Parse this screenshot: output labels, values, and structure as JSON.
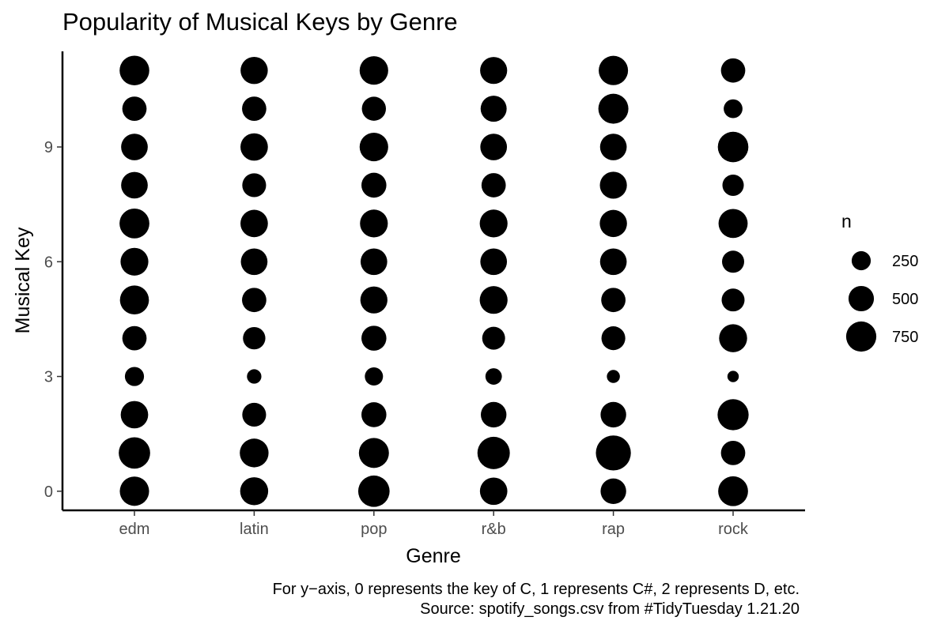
{
  "chart_data": {
    "type": "scatter",
    "title": "Popularity of Musical Keys by Genre",
    "xlabel": "Genre",
    "ylabel": "Musical Key",
    "categories": [
      "edm",
      "latin",
      "pop",
      "r&b",
      "rap",
      "rock"
    ],
    "y_ticks": [
      0,
      3,
      6,
      9
    ],
    "ylim": [
      -0.5,
      11.5
    ],
    "grid": false,
    "size_legend": {
      "title": "n",
      "position": "right",
      "entries": [
        250,
        500,
        750
      ]
    },
    "marker_color": "#000000",
    "points": [
      {
        "genre": "edm",
        "key": 0,
        "n": 700
      },
      {
        "genre": "edm",
        "key": 1,
        "n": 820
      },
      {
        "genre": "edm",
        "key": 2,
        "n": 600
      },
      {
        "genre": "edm",
        "key": 3,
        "n": 250
      },
      {
        "genre": "edm",
        "key": 4,
        "n": 450
      },
      {
        "genre": "edm",
        "key": 5,
        "n": 680
      },
      {
        "genre": "edm",
        "key": 6,
        "n": 620
      },
      {
        "genre": "edm",
        "key": 7,
        "n": 730
      },
      {
        "genre": "edm",
        "key": 8,
        "n": 560
      },
      {
        "genre": "edm",
        "key": 9,
        "n": 560
      },
      {
        "genre": "edm",
        "key": 10,
        "n": 450
      },
      {
        "genre": "edm",
        "key": 11,
        "n": 720
      },
      {
        "genre": "latin",
        "key": 0,
        "n": 630
      },
      {
        "genre": "latin",
        "key": 1,
        "n": 670
      },
      {
        "genre": "latin",
        "key": 2,
        "n": 430
      },
      {
        "genre": "latin",
        "key": 3,
        "n": 120
      },
      {
        "genre": "latin",
        "key": 4,
        "n": 370
      },
      {
        "genre": "latin",
        "key": 5,
        "n": 450
      },
      {
        "genre": "latin",
        "key": 6,
        "n": 560
      },
      {
        "genre": "latin",
        "key": 7,
        "n": 600
      },
      {
        "genre": "latin",
        "key": 8,
        "n": 430
      },
      {
        "genre": "latin",
        "key": 9,
        "n": 600
      },
      {
        "genre": "latin",
        "key": 10,
        "n": 450
      },
      {
        "genre": "latin",
        "key": 11,
        "n": 590
      },
      {
        "genre": "pop",
        "key": 0,
        "n": 820
      },
      {
        "genre": "pop",
        "key": 1,
        "n": 740
      },
      {
        "genre": "pop",
        "key": 2,
        "n": 480
      },
      {
        "genre": "pop",
        "key": 3,
        "n": 220
      },
      {
        "genre": "pop",
        "key": 4,
        "n": 480
      },
      {
        "genre": "pop",
        "key": 5,
        "n": 580
      },
      {
        "genre": "pop",
        "key": 6,
        "n": 560
      },
      {
        "genre": "pop",
        "key": 7,
        "n": 620
      },
      {
        "genre": "pop",
        "key": 8,
        "n": 480
      },
      {
        "genre": "pop",
        "key": 9,
        "n": 660
      },
      {
        "genre": "pop",
        "key": 10,
        "n": 440
      },
      {
        "genre": "pop",
        "key": 11,
        "n": 660
      },
      {
        "genre": "r&b",
        "key": 0,
        "n": 600
      },
      {
        "genre": "r&b",
        "key": 1,
        "n": 880
      },
      {
        "genre": "r&b",
        "key": 2,
        "n": 510
      },
      {
        "genre": "r&b",
        "key": 3,
        "n": 170
      },
      {
        "genre": "r&b",
        "key": 4,
        "n": 390
      },
      {
        "genre": "r&b",
        "key": 5,
        "n": 620
      },
      {
        "genre": "r&b",
        "key": 6,
        "n": 560
      },
      {
        "genre": "r&b",
        "key": 7,
        "n": 620
      },
      {
        "genre": "r&b",
        "key": 8,
        "n": 450
      },
      {
        "genre": "r&b",
        "key": 9,
        "n": 560
      },
      {
        "genre": "r&b",
        "key": 10,
        "n": 530
      },
      {
        "genre": "r&b",
        "key": 11,
        "n": 580
      },
      {
        "genre": "rap",
        "key": 0,
        "n": 510
      },
      {
        "genre": "rap",
        "key": 1,
        "n": 1050
      },
      {
        "genre": "rap",
        "key": 2,
        "n": 510
      },
      {
        "genre": "rap",
        "key": 3,
        "n": 90
      },
      {
        "genre": "rap",
        "key": 4,
        "n": 430
      },
      {
        "genre": "rap",
        "key": 5,
        "n": 450
      },
      {
        "genre": "rap",
        "key": 6,
        "n": 560
      },
      {
        "genre": "rap",
        "key": 7,
        "n": 590
      },
      {
        "genre": "rap",
        "key": 8,
        "n": 580
      },
      {
        "genre": "rap",
        "key": 9,
        "n": 560
      },
      {
        "genre": "rap",
        "key": 10,
        "n": 740
      },
      {
        "genre": "rap",
        "key": 11,
        "n": 700
      },
      {
        "genre": "rock",
        "key": 0,
        "n": 730
      },
      {
        "genre": "rock",
        "key": 1,
        "n": 450
      },
      {
        "genre": "rock",
        "key": 2,
        "n": 800
      },
      {
        "genre": "rock",
        "key": 3,
        "n": 60
      },
      {
        "genre": "rock",
        "key": 4,
        "n": 630
      },
      {
        "genre": "rock",
        "key": 5,
        "n": 390
      },
      {
        "genre": "rock",
        "key": 6,
        "n": 360
      },
      {
        "genre": "rock",
        "key": 7,
        "n": 690
      },
      {
        "genre": "rock",
        "key": 8,
        "n": 330
      },
      {
        "genre": "rock",
        "key": 9,
        "n": 770
      },
      {
        "genre": "rock",
        "key": 10,
        "n": 240
      },
      {
        "genre": "rock",
        "key": 11,
        "n": 450
      }
    ]
  },
  "caption": {
    "line1": "For y−axis, 0 represents the key of C, 1 represents C#, 2 represents D, etc.",
    "line2": "Source: spotify_songs.csv from #TidyTuesday 1.21.20"
  }
}
